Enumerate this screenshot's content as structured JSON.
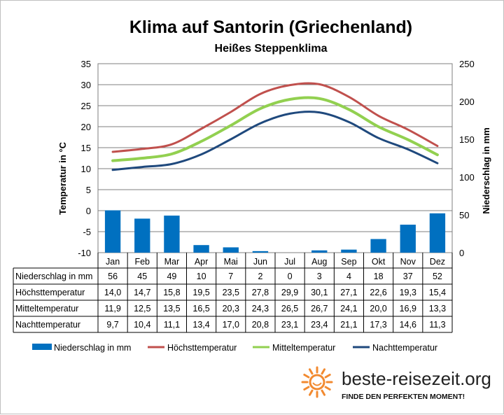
{
  "title": "Klima auf Santorin (Griechenland)",
  "subtitle": "Heißes Steppenklima",
  "colors": {
    "precipitation": "#0070c0",
    "max_temp": "#c0504d",
    "mean_temp": "#92d050",
    "night_temp": "#1f497d",
    "sun": "#f28a30"
  },
  "brand": {
    "name": "beste-reisezeit.org",
    "slogan": "FINDE DEN PERFEKTEN MOMENT!",
    "icon": "sun-icon"
  },
  "chart_data": {
    "type": "bar+line",
    "categories": [
      "Jan",
      "Feb",
      "Mar",
      "Apr",
      "Mai",
      "Jun",
      "Jul",
      "Aug",
      "Sep",
      "Okt",
      "Nov",
      "Dez"
    ],
    "ylabel_left": "Temperatur in °C",
    "ylabel_right": "Niederschlag in mm",
    "ylim_left": [
      -10,
      35
    ],
    "yticks_left": [
      "35",
      "30",
      "25",
      "20",
      "15",
      "10",
      "5",
      "0",
      "-5",
      "-10"
    ],
    "ylim_right": [
      0,
      250
    ],
    "yticks_right": [
      "250",
      "200",
      "150",
      "100",
      "50",
      "0"
    ],
    "grid": true,
    "legend_position": "bottom",
    "series": [
      {
        "name": "Niederschlag in mm",
        "type": "bar",
        "axis": "right",
        "values": [
          56,
          45,
          49,
          10,
          7,
          2,
          0,
          3,
          4,
          18,
          37,
          52
        ],
        "labels": [
          "56",
          "45",
          "49",
          "10",
          "7",
          "2",
          "0",
          "3",
          "4",
          "18",
          "37",
          "52"
        ]
      },
      {
        "name": "Höchsttemperatur",
        "type": "line",
        "axis": "left",
        "values": [
          14.0,
          14.7,
          15.8,
          19.5,
          23.5,
          27.8,
          29.9,
          30.1,
          27.1,
          22.6,
          19.3,
          15.4
        ],
        "labels": [
          "14,0",
          "14,7",
          "15,8",
          "19,5",
          "23,5",
          "27,8",
          "29,9",
          "30,1",
          "27,1",
          "22,6",
          "19,3",
          "15,4"
        ]
      },
      {
        "name": "Mitteltemperatur",
        "type": "line",
        "axis": "left",
        "values": [
          11.9,
          12.5,
          13.5,
          16.5,
          20.3,
          24.3,
          26.5,
          26.7,
          24.1,
          20.0,
          16.9,
          13.3
        ],
        "labels": [
          "11,9",
          "12,5",
          "13,5",
          "16,5",
          "20,3",
          "24,3",
          "26,5",
          "26,7",
          "24,1",
          "20,0",
          "16,9",
          "13,3"
        ]
      },
      {
        "name": "Nachttemperatur",
        "type": "line",
        "axis": "left",
        "values": [
          9.7,
          10.4,
          11.1,
          13.4,
          17.0,
          20.8,
          23.1,
          23.4,
          21.1,
          17.3,
          14.6,
          11.3
        ],
        "labels": [
          "9,7",
          "10,4",
          "11,1",
          "13,4",
          "17,0",
          "20,8",
          "23,1",
          "23,4",
          "21,1",
          "17,3",
          "14,6",
          "11,3"
        ]
      }
    ]
  }
}
